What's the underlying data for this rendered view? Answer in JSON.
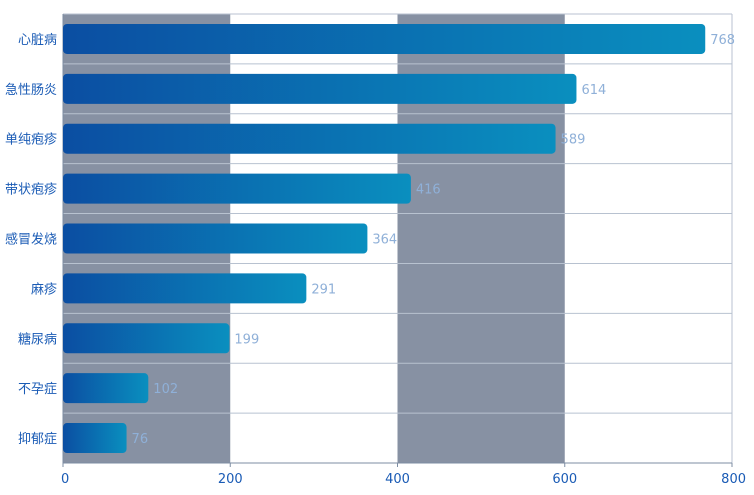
{
  "chart_data": {
    "type": "bar",
    "orientation": "horizontal",
    "categories": [
      "心脏病",
      "急性肠炎",
      "单纯疱疹",
      "带状疱疹",
      "感冒发烧",
      "麻疹",
      "糖尿病",
      "不孕症",
      "抑郁症"
    ],
    "values": [
      768,
      614,
      589,
      416,
      364,
      291,
      199,
      102,
      76
    ],
    "xlim": [
      0,
      800
    ],
    "xticks": [
      "0",
      "200",
      "400",
      "600",
      "800"
    ],
    "title": "",
    "xlabel": "",
    "ylabel": "",
    "legend": "none",
    "colors": {
      "bar_start": "#0b4ea2",
      "bar_end": "#0a8fbf",
      "band": "#8791a3",
      "grid": "#b8c2d0",
      "axis": "#7d8da3",
      "label": "#1a5bb5",
      "value_label": "#8fb0d8"
    }
  }
}
